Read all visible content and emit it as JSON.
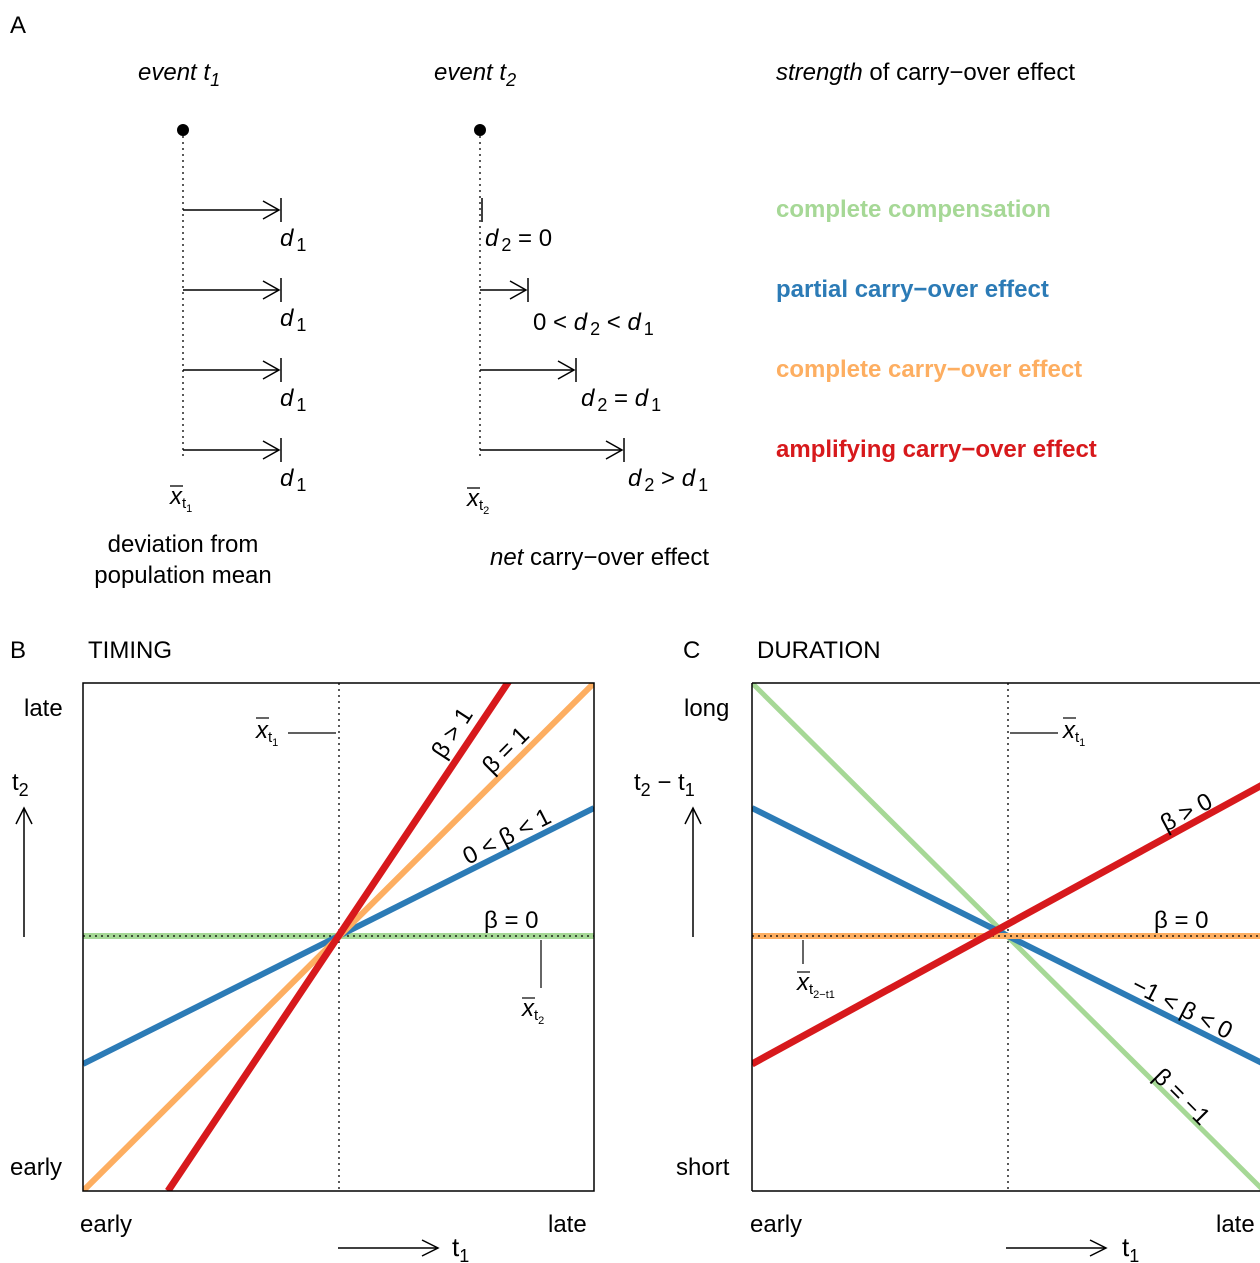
{
  "panel_a": {
    "label": "A",
    "event1_word": "event",
    "event1_t": "t",
    "event1_sub": "1",
    "event2_word": "event",
    "event2_t": "t",
    "event2_sub": "2",
    "strength_italic": "strength",
    "strength_rest": " of carry−over effect",
    "d1_label": "d",
    "d1_sub": "1",
    "rows": [
      {
        "right_text": [
          "d",
          "2",
          " = 0"
        ]
      },
      {
        "right_text": [
          "0 < ",
          "d",
          "2",
          " < ",
          "d",
          "1"
        ]
      },
      {
        "right_text": [
          "d",
          "2",
          " = ",
          "d",
          "1"
        ]
      },
      {
        "right_text": [
          "d",
          "2",
          " > ",
          "d",
          "1"
        ]
      }
    ],
    "strengths": [
      {
        "label": "complete compensation",
        "color": "#a6d896"
      },
      {
        "label": "partial carry−over effect",
        "color": "#2c7bb6"
      },
      {
        "label": "complete carry−over effect",
        "color": "#fdae61"
      },
      {
        "label": "amplifying carry−over effect",
        "color": "#d7191c"
      }
    ],
    "xbar1": "x",
    "xbar1_sub": "t",
    "xbar1_subsub": "1",
    "xbar2": "x",
    "xbar2_sub": "t",
    "xbar2_subsub": "2",
    "deviation_line1": "deviation from",
    "deviation_line2": "population mean",
    "net_italic": "net",
    "net_rest": " carry−over effect"
  },
  "panel_b": {
    "label": "B",
    "title": "TIMING",
    "y_top": "late",
    "y_bottom": "early",
    "x_left": "early",
    "x_right": "late",
    "y_axis": "t",
    "y_axis_sub": "2",
    "x_axis": "t",
    "x_axis_sub": "1",
    "line_labels": [
      "β > 1",
      "β = 1",
      "0 < β < 1",
      "β  = 0"
    ],
    "xbar": "x",
    "xbar_sub": "t",
    "xbar_subsub": "1",
    "ybar": "x",
    "ybar_sub": "t",
    "ybar_subsub": "2"
  },
  "panel_c": {
    "label": "C",
    "title": "DURATION",
    "y_top": "long",
    "y_bottom": "short",
    "x_left": "early",
    "x_right": "late",
    "y_axis": "t",
    "y_axis_sub1": "2",
    "y_axis_minus": " − t",
    "y_axis_sub2": "1",
    "x_axis": "t",
    "x_axis_sub": "1",
    "line_labels": [
      "β > 0",
      "β  = 0",
      "−1 < β < 0",
      "β = −1"
    ],
    "xbar": "x",
    "xbar_sub": "t",
    "xbar_subsub": "1",
    "ybar": "x",
    "ybar_sub": "t",
    "ybar_subsub": "2−t1"
  },
  "colors": {
    "green": "#a6d896",
    "blue": "#2c7bb6",
    "orange": "#fdae61",
    "red": "#d7191c"
  }
}
